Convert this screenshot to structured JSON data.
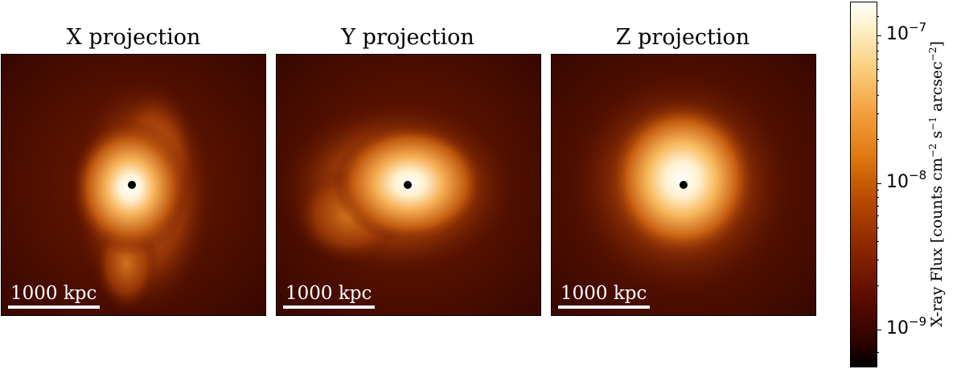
{
  "panels": [
    {
      "title": "X projection",
      "scale_label": "1000 kpc"
    },
    {
      "title": "Y projection",
      "scale_label": "1000 kpc"
    },
    {
      "title": "Z projection",
      "scale_label": "1000 kpc"
    }
  ],
  "colorbar": {
    "label_main": "X-ray Flux [counts cm",
    "label_exp1": "−2",
    "label_mid1": " s",
    "label_exp2": "−1",
    "label_mid2": " arcsec",
    "label_exp3": "−2",
    "label_end": "]",
    "scale": "log",
    "ticks": [
      {
        "base": "10",
        "exp": "−7",
        "value": 1e-07
      },
      {
        "base": "10",
        "exp": "−8",
        "value": 1e-08
      },
      {
        "base": "10",
        "exp": "−9",
        "value": 1e-09
      }
    ],
    "range": [
      4.5e-10,
      1.9e-07
    ],
    "colormap": "afmhot",
    "colors": {
      "low": "#000000",
      "mid": "#e07a10",
      "high": "#ffffff"
    }
  },
  "marker_color": "#000000",
  "scalebar_color": "#ffffff"
}
